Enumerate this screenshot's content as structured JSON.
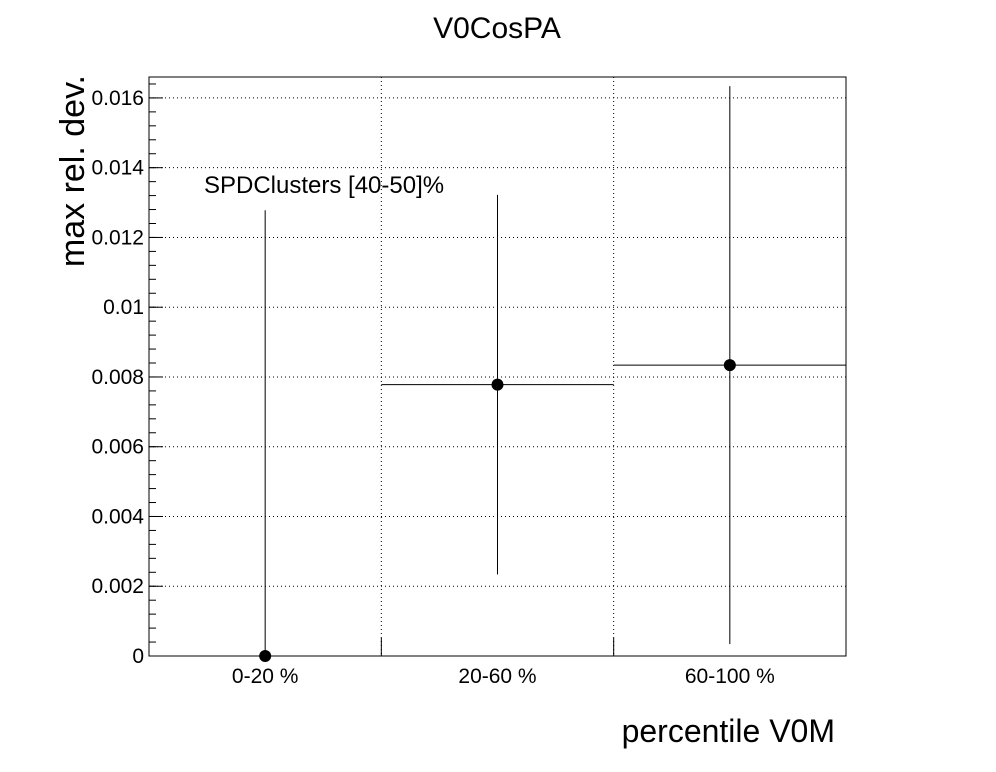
{
  "chart_data": {
    "type": "scatter",
    "title": "V0CosPA",
    "xlabel": "percentile V0M",
    "ylabel": "max rel. dev.",
    "categories": [
      "0-20 %",
      "20-60 %",
      "60-100 %"
    ],
    "bins": [
      [
        0,
        20
      ],
      [
        20,
        60
      ],
      [
        60,
        100
      ]
    ],
    "xlim": [
      0,
      3
    ],
    "ylim": [
      0,
      0.0166
    ],
    "yticks": [
      "0",
      "0.002",
      "0.004",
      "0.006",
      "0.008",
      "0.01",
      "0.012",
      "0.014",
      "0.016"
    ],
    "ytick_values": [
      0,
      0.002,
      0.004,
      0.006,
      0.008,
      0.01,
      0.012,
      0.014,
      0.016
    ],
    "grid": true,
    "series": [
      {
        "values": [
          0.0,
          0.00778,
          0.00834
        ],
        "errors": [
          0.01278,
          0.00544,
          0.008
        ]
      }
    ],
    "annotation": "SPDClusters [40-50]%",
    "colors": {
      "marker": "#000000",
      "axis": "#000000",
      "background": "#ffffff"
    }
  }
}
